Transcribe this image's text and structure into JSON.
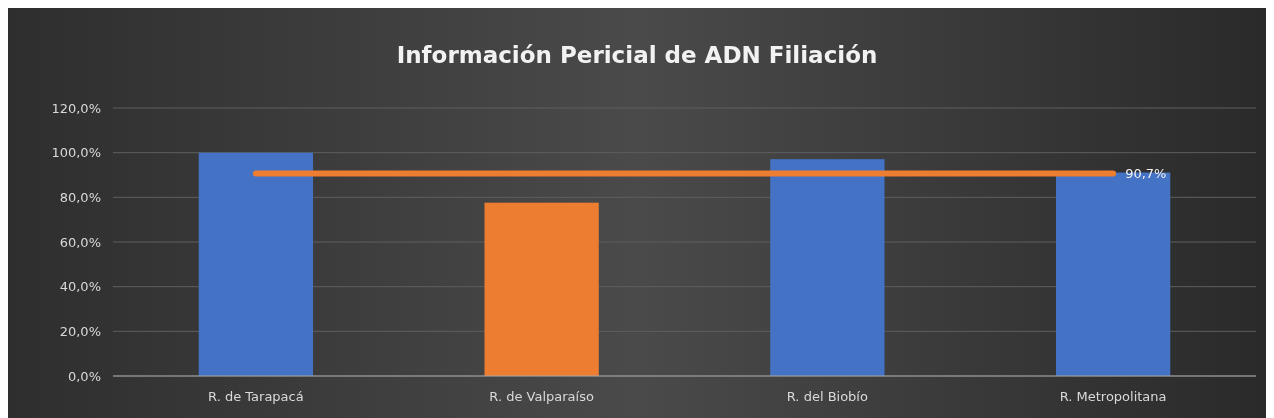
{
  "chart_data": {
    "type": "bar",
    "title": "Información Pericial de ADN Filiación",
    "categories": [
      "R. de Tarapacá",
      "R. de Valparaíso",
      "R. del Biobío",
      "R. Metropolitana"
    ],
    "values": [
      100,
      77.6,
      97.1,
      91.1
    ],
    "colors": [
      "#4472c4",
      "#ed7d31",
      "#4472c4",
      "#4472c4"
    ],
    "ylim": [
      0,
      120
    ],
    "yticks": [
      {
        "value": 0,
        "label": "0,0%"
      },
      {
        "value": 20,
        "label": "20,0%"
      },
      {
        "value": 40,
        "label": "40,0%"
      },
      {
        "value": 60,
        "label": "60,0%"
      },
      {
        "value": 80,
        "label": "80,0%"
      },
      {
        "value": 100,
        "label": "100,0%"
      },
      {
        "value": 120,
        "label": "120,0%"
      }
    ],
    "grid": "y",
    "ref_lines": [
      {
        "axis": "y",
        "value": 90.7,
        "label": "90,7%",
        "color": "#ed7d31"
      }
    ]
  }
}
